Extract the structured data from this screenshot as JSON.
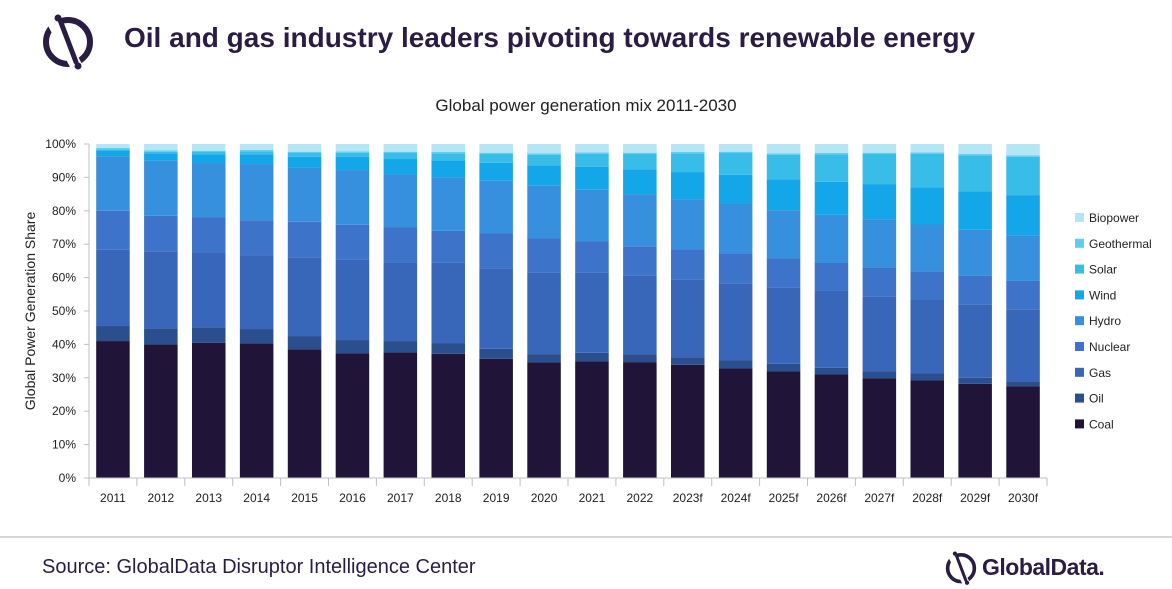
{
  "header": {
    "headline": "Oil and gas industry leaders pivoting towards renewable energy",
    "logo_icon": "globaldata-logo-icon"
  },
  "footer": {
    "source": "Source: GlobalData Disruptor Intelligence Center",
    "brand": "GlobalData."
  },
  "colors": {
    "Coal": "#201538",
    "Oil": "#2b4f8e",
    "Gas": "#3866b8",
    "Nuclear": "#3d74c9",
    "Hydro": "#3690dd",
    "Wind": "#13a6e8",
    "Solar": "#38bde9",
    "Geothermal": "#5fcdee",
    "Biopower": "#b4e6f6"
  },
  "chart_data": {
    "type": "bar",
    "stacked": true,
    "title": "Global power generation mix 2011-2030",
    "xlabel": "",
    "ylabel": "Global Power Generation Share",
    "ylim": [
      0,
      100
    ],
    "yticks": [
      "0%",
      "10%",
      "20%",
      "30%",
      "40%",
      "50%",
      "60%",
      "70%",
      "80%",
      "90%",
      "100%"
    ],
    "legend_position": "right",
    "categories": [
      "2011",
      "2012",
      "2013",
      "2014",
      "2015",
      "2016",
      "2017",
      "2018",
      "2019",
      "2020",
      "2021",
      "2022",
      "2023f",
      "2024f",
      "2025f",
      "2026f",
      "2027f",
      "2028f",
      "2029f",
      "2030f"
    ],
    "series": [
      {
        "name": "Coal",
        "values": [
          41,
          40,
          40.5,
          40.3,
          38.5,
          37.3,
          37.6,
          37.2,
          35.7,
          34.6,
          34.9,
          34.7,
          33.9,
          32.8,
          31.9,
          31,
          29.8,
          29.2,
          28.2,
          27.5
        ]
      },
      {
        "name": "Oil",
        "values": [
          4.5,
          4.8,
          4.6,
          4.3,
          4,
          4,
          3.4,
          3.2,
          3,
          2.5,
          2.6,
          2.3,
          2.2,
          2.5,
          2.3,
          2,
          2.1,
          2.1,
          1.8,
          1.5
        ]
      },
      {
        "name": "Gas",
        "values": [
          22.8,
          23.1,
          22.4,
          22,
          23.6,
          24,
          23.5,
          24,
          24,
          24.3,
          23.9,
          23.7,
          23.4,
          23,
          22.8,
          23,
          22.5,
          22,
          22,
          21.5
        ]
      },
      {
        "name": "Nuclear",
        "values": [
          11.7,
          10.6,
          10.5,
          10.6,
          10.6,
          10.5,
          10.5,
          9.6,
          10.5,
          10.3,
          9.4,
          8.7,
          8.9,
          8.9,
          8.7,
          8.5,
          8.6,
          8.5,
          8.5,
          8.5
        ]
      },
      {
        "name": "Hydro",
        "values": [
          16.3,
          16.5,
          16.3,
          16.8,
          16.3,
          16.4,
          16,
          16,
          15.8,
          15.8,
          15.5,
          15.6,
          15.1,
          15,
          14.5,
          14.3,
          14.5,
          14.1,
          13.8,
          13.7
        ]
      },
      {
        "name": "Wind",
        "values": [
          1.8,
          2.2,
          2.6,
          2.9,
          3.2,
          3.9,
          4.5,
          5.1,
          5.4,
          6.1,
          6.9,
          7.4,
          8.1,
          8.6,
          9.2,
          9.9,
          10.5,
          11.1,
          11.5,
          12
        ]
      },
      {
        "name": "Solar",
        "values": [
          0.3,
          0.5,
          0.7,
          0.9,
          1.1,
          1.3,
          1.8,
          2.1,
          2.6,
          3.2,
          3.9,
          4.6,
          5.6,
          6.5,
          7.4,
          8.2,
          9,
          10.1,
          10.8,
          11.5
        ]
      },
      {
        "name": "Geothermal",
        "values": [
          0.4,
          0.4,
          0.4,
          0.4,
          0.4,
          0.4,
          0.4,
          0.4,
          0.4,
          0.4,
          0.4,
          0.4,
          0.4,
          0.4,
          0.4,
          0.4,
          0.4,
          0.4,
          0.4,
          0.4
        ]
      },
      {
        "name": "Biopower",
        "values": [
          1.2,
          1.9,
          2,
          1.8,
          2.3,
          2.2,
          2.3,
          2.4,
          2.6,
          2.8,
          2.5,
          2.6,
          2.4,
          2.3,
          2.8,
          2.7,
          2.6,
          2.5,
          3,
          3.4
        ]
      }
    ]
  }
}
